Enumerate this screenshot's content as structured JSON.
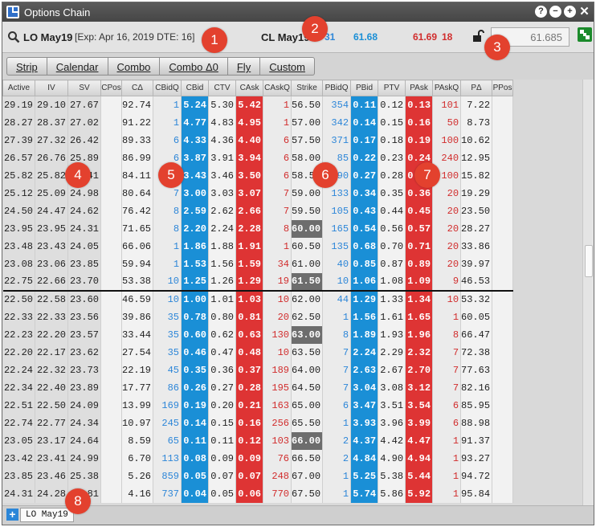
{
  "window": {
    "title": "Options Chain"
  },
  "header": {
    "symbol": "LO May19",
    "expiry_info": "[Exp: Apr 16, 2019 DTE: 16]",
    "underlying": "CL May19",
    "bid_size": "31",
    "bid": "61.68",
    "ask": "61.69",
    "ask_size": "18",
    "last_value": "61.685"
  },
  "strategy_tabs": [
    "Strip",
    "Calendar",
    "Combo",
    "Combo Δ0",
    "Fly",
    "Custom"
  ],
  "columns": [
    "Active",
    "IV",
    "SV",
    "CPos",
    "CΔ",
    "CBidQ",
    "CBid",
    "CTV",
    "CAsk",
    "CAskQ",
    "Strike",
    "PBidQ",
    "PBid",
    "PTV",
    "PAsk",
    "PAskQ",
    "PΔ",
    "PPos"
  ],
  "rows": [
    [
      "29.19",
      "29.10",
      "27.67",
      "",
      "92.74",
      "1",
      "5.24",
      "5.30",
      "5.42",
      "1",
      "56.50",
      "354",
      "0.11",
      "0.12",
      "0.13",
      "101",
      "7.22",
      ""
    ],
    [
      "28.27",
      "28.37",
      "27.02",
      "",
      "91.22",
      "1",
      "4.77",
      "4.83",
      "4.95",
      "1",
      "57.00",
      "342",
      "0.14",
      "0.15",
      "0.16",
      "50",
      "8.73",
      ""
    ],
    [
      "27.39",
      "27.32",
      "26.42",
      "",
      "89.33",
      "6",
      "4.33",
      "4.36",
      "4.40",
      "6",
      "57.50",
      "371",
      "0.17",
      "0.18",
      "0.19",
      "100",
      "10.62",
      ""
    ],
    [
      "26.57",
      "26.76",
      "25.89",
      "",
      "86.99",
      "6",
      "3.87",
      "3.91",
      "3.94",
      "6",
      "58.00",
      "85",
      "0.22",
      "0.23",
      "0.24",
      "240",
      "12.95",
      ""
    ],
    [
      "25.82",
      "25.82",
      "25.41",
      "",
      "84.11",
      "6",
      "3.43",
      "3.46",
      "3.50",
      "6",
      "58.50",
      "90",
      "0.27",
      "0.28",
      "0.29",
      "100",
      "15.82",
      ""
    ],
    [
      "25.12",
      "25.09",
      "24.98",
      "",
      "80.64",
      "7",
      "3.00",
      "3.03",
      "3.07",
      "7",
      "59.00",
      "133",
      "0.34",
      "0.35",
      "0.36",
      "20",
      "19.29",
      ""
    ],
    [
      "24.50",
      "24.47",
      "24.62",
      "",
      "76.42",
      "8",
      "2.59",
      "2.62",
      "2.66",
      "7",
      "59.50",
      "105",
      "0.43",
      "0.44",
      "0.45",
      "20",
      "23.50",
      ""
    ],
    [
      "23.95",
      "23.95",
      "24.31",
      "",
      "71.65",
      "8",
      "2.20",
      "2.24",
      "2.28",
      "8",
      "60.00",
      "165",
      "0.54",
      "0.56",
      "0.57",
      "20",
      "28.27",
      ""
    ],
    [
      "23.48",
      "23.43",
      "24.05",
      "",
      "66.06",
      "1",
      "1.86",
      "1.88",
      "1.91",
      "1",
      "60.50",
      "135",
      "0.68",
      "0.70",
      "0.71",
      "20",
      "33.86",
      ""
    ],
    [
      "23.08",
      "23.06",
      "23.85",
      "",
      "59.94",
      "1",
      "1.53",
      "1.56",
      "1.59",
      "34",
      "61.00",
      "40",
      "0.85",
      "0.87",
      "0.89",
      "20",
      "39.97",
      ""
    ],
    [
      "22.75",
      "22.66",
      "23.70",
      "",
      "53.38",
      "10",
      "1.25",
      "1.26",
      "1.29",
      "19",
      "61.50",
      "10",
      "1.06",
      "1.08",
      "1.09",
      "9",
      "46.53",
      ""
    ],
    [
      "22.50",
      "22.58",
      "23.60",
      "",
      "46.59",
      "10",
      "1.00",
      "1.01",
      "1.03",
      "10",
      "62.00",
      "44",
      "1.29",
      "1.33",
      "1.34",
      "10",
      "53.32",
      ""
    ],
    [
      "22.33",
      "22.33",
      "23.56",
      "",
      "39.86",
      "35",
      "0.78",
      "0.80",
      "0.81",
      "20",
      "62.50",
      "1",
      "1.56",
      "1.61",
      "1.65",
      "1",
      "60.05",
      ""
    ],
    [
      "22.23",
      "22.20",
      "23.57",
      "",
      "33.44",
      "35",
      "0.60",
      "0.62",
      "0.63",
      "130",
      "63.00",
      "8",
      "1.89",
      "1.93",
      "1.96",
      "8",
      "66.47",
      ""
    ],
    [
      "22.20",
      "22.17",
      "23.62",
      "",
      "27.54",
      "35",
      "0.46",
      "0.47",
      "0.48",
      "10",
      "63.50",
      "7",
      "2.24",
      "2.29",
      "2.32",
      "7",
      "72.38",
      ""
    ],
    [
      "22.24",
      "22.32",
      "23.73",
      "",
      "22.19",
      "45",
      "0.35",
      "0.36",
      "0.37",
      "189",
      "64.00",
      "7",
      "2.63",
      "2.67",
      "2.70",
      "7",
      "77.63",
      ""
    ],
    [
      "22.34",
      "22.40",
      "23.89",
      "",
      "17.77",
      "86",
      "0.26",
      "0.27",
      "0.28",
      "195",
      "64.50",
      "7",
      "3.04",
      "3.08",
      "3.12",
      "7",
      "82.16",
      ""
    ],
    [
      "22.51",
      "22.50",
      "24.09",
      "",
      "13.99",
      "169",
      "0.19",
      "0.20",
      "0.21",
      "163",
      "65.00",
      "6",
      "3.47",
      "3.51",
      "3.54",
      "6",
      "85.95",
      ""
    ],
    [
      "22.74",
      "22.77",
      "24.34",
      "",
      "10.97",
      "245",
      "0.14",
      "0.15",
      "0.16",
      "256",
      "65.50",
      "1",
      "3.93",
      "3.96",
      "3.99",
      "6",
      "88.98",
      ""
    ],
    [
      "23.05",
      "23.17",
      "24.64",
      "",
      "8.59",
      "65",
      "0.11",
      "0.11",
      "0.12",
      "103",
      "66.00",
      "2",
      "4.37",
      "4.42",
      "4.47",
      "1",
      "91.37",
      ""
    ],
    [
      "23.42",
      "23.41",
      "24.99",
      "",
      "6.70",
      "113",
      "0.08",
      "0.09",
      "0.09",
      "76",
      "66.50",
      "2",
      "4.84",
      "4.90",
      "4.94",
      "1",
      "93.27",
      ""
    ],
    [
      "23.85",
      "23.46",
      "25.38",
      "",
      "5.26",
      "859",
      "0.05",
      "0.07",
      "0.07",
      "248",
      "67.00",
      "1",
      "5.25",
      "5.38",
      "5.44",
      "1",
      "94.72",
      ""
    ],
    [
      "24.31",
      "24.28",
      "25.81",
      "",
      "4.16",
      "737",
      "0.04",
      "0.05",
      "0.06",
      "770",
      "67.50",
      "1",
      "5.74",
      "5.86",
      "5.92",
      "1",
      "95.84",
      ""
    ]
  ],
  "atm_strikes": [
    "60.00",
    "61.50",
    "63.00",
    "66.00"
  ],
  "footer": {
    "tab_label": "LO May19",
    "add_label": "+"
  },
  "callouts": [
    "1",
    "2",
    "3",
    "4",
    "5",
    "6",
    "7",
    "8"
  ],
  "colors": {
    "bid": "#1a8fd6",
    "ask": "#de3434",
    "bid_qty": "#2d86d8",
    "ask_qty": "#d12d2d",
    "callout": "#e3412e"
  }
}
